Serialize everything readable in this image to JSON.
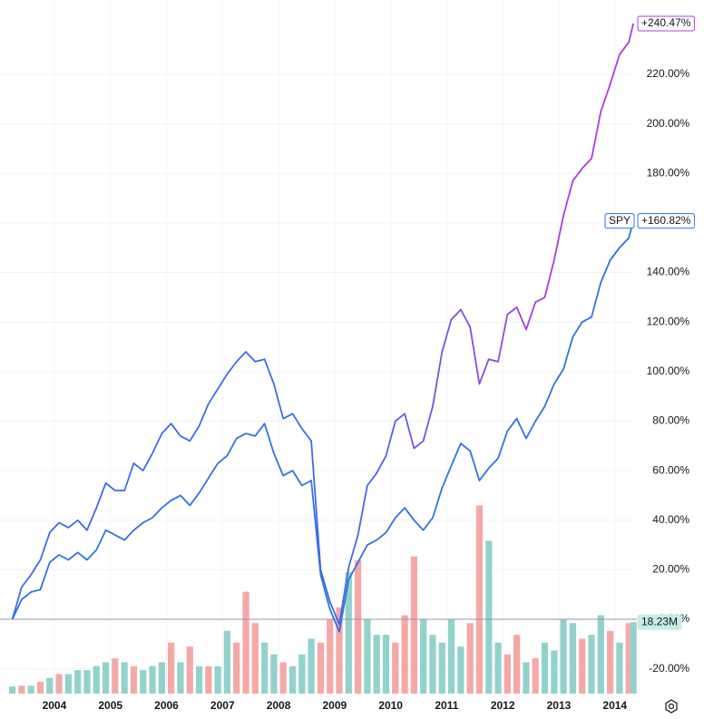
{
  "chart_data": {
    "type": "line",
    "x": [
      2003.25,
      2003.417,
      2003.583,
      2003.75,
      2003.917,
      2004.083,
      2004.25,
      2004.417,
      2004.583,
      2004.75,
      2004.917,
      2005.083,
      2005.25,
      2005.417,
      2005.583,
      2005.75,
      2005.917,
      2006.083,
      2006.25,
      2006.417,
      2006.583,
      2006.75,
      2006.917,
      2007.083,
      2007.25,
      2007.417,
      2007.583,
      2007.75,
      2007.917,
      2008.083,
      2008.25,
      2008.417,
      2008.583,
      2008.75,
      2008.917,
      2009.083,
      2009.25,
      2009.417,
      2009.583,
      2009.75,
      2009.917,
      2010.083,
      2010.25,
      2010.417,
      2010.583,
      2010.75,
      2010.917,
      2011.083,
      2011.25,
      2011.417,
      2011.583,
      2011.75,
      2011.917,
      2012.083,
      2012.25,
      2012.417,
      2012.583,
      2012.75,
      2012.917,
      2013.083,
      2013.25,
      2013.417,
      2013.583,
      2013.75,
      2013.917,
      2014.083,
      2014.25,
      2014.33
    ],
    "series": [
      {
        "gradient": [
          "#3f6ae8",
          "#a83ee0"
        ],
        "end_label": "+240.47%",
        "values": [
          0,
          13,
          18,
          24,
          35,
          39,
          37,
          40,
          36,
          45,
          55,
          52,
          52,
          63,
          60,
          67,
          75,
          79,
          74,
          72,
          78,
          87,
          93,
          99,
          104,
          108,
          104,
          105,
          95,
          81,
          83,
          77,
          72,
          20,
          7,
          -2,
          21,
          34,
          54,
          59,
          66,
          80,
          83,
          69,
          72,
          86,
          108,
          121,
          125,
          118,
          95,
          105,
          104,
          123,
          126,
          117,
          128,
          130,
          145,
          163,
          177,
          182,
          186,
          205,
          216,
          228,
          233,
          240.47
        ]
      },
      {
        "name": "SPY",
        "color": "#2f74e0",
        "end_label": "+160.82%",
        "values": [
          0,
          8,
          11,
          12,
          23,
          26,
          24,
          27,
          24,
          28,
          36,
          34,
          32,
          36,
          39,
          41,
          45,
          48,
          50,
          46,
          51,
          57,
          63,
          66,
          73,
          75,
          74,
          79,
          67,
          58,
          60,
          54,
          56,
          18,
          4,
          -5,
          16,
          23,
          30,
          32,
          35,
          41,
          45,
          40,
          36,
          41,
          53,
          62,
          71,
          68,
          56,
          61,
          65,
          76,
          81,
          73,
          80,
          86,
          95,
          101,
          114,
          120,
          122,
          136,
          145,
          150,
          154,
          160.82
        ]
      }
    ],
    "volume": {
      "end_label": "18.23M",
      "up_color": "#92d2cc",
      "down_color": "#f5a8a6",
      "label_bg": "#c8ebe7",
      "label_color": "#22998c",
      "values": [
        1.8,
        2,
        2,
        3,
        4,
        5,
        5,
        6,
        6,
        7,
        8,
        9,
        8,
        7,
        6,
        7,
        8,
        13,
        8,
        12,
        7,
        7,
        7,
        16,
        13,
        26,
        18,
        13,
        10,
        8,
        7,
        10,
        14,
        13,
        19,
        22,
        31,
        34,
        19,
        15,
        15,
        13,
        20,
        35,
        19,
        15,
        13,
        19,
        12,
        18,
        48,
        39,
        13,
        10,
        15,
        8,
        9,
        13,
        11,
        19,
        18,
        14,
        15,
        20,
        16,
        13,
        18,
        18.23
      ],
      "down": [
        false,
        true,
        false,
        true,
        false,
        true,
        false,
        false,
        false,
        false,
        false,
        true,
        false,
        true,
        false,
        false,
        false,
        true,
        false,
        true,
        false,
        true,
        false,
        false,
        true,
        true,
        true,
        false,
        false,
        true,
        false,
        false,
        false,
        true,
        true,
        true,
        false,
        true,
        false,
        false,
        false,
        true,
        true,
        true,
        false,
        false,
        false,
        false,
        false,
        true,
        true,
        false,
        false,
        true,
        true,
        false,
        true,
        false,
        false,
        false,
        false,
        true,
        false,
        false,
        true,
        false,
        true,
        false
      ],
      "ylim": [
        0,
        177
      ]
    },
    "xlim": [
      2003.03,
      2014.36
    ],
    "xticks": [
      2004,
      2005,
      2006,
      2007,
      2008,
      2009,
      2010,
      2011,
      2012,
      2013,
      2014
    ],
    "ylim": [
      -30,
      250
    ],
    "yticks": [
      {
        "value": -20,
        "label": "-20.00%"
      },
      {
        "value": 0,
        "label": "0.00%"
      },
      {
        "value": 20,
        "label": "20.00%"
      },
      {
        "value": 40,
        "label": "40.00%"
      },
      {
        "value": 60,
        "label": "60.00%"
      },
      {
        "value": 80,
        "label": "80.00%"
      },
      {
        "value": 100,
        "label": "100.00%"
      },
      {
        "value": 120,
        "label": "120.00%"
      },
      {
        "value": 140,
        "label": "140.00%"
      },
      {
        "value": 160,
        "label": "160.00%"
      },
      {
        "value": 180,
        "label": "180.00%"
      },
      {
        "value": 200,
        "label": "200.00%"
      },
      {
        "value": 220,
        "label": "220.00%"
      }
    ],
    "grid": true
  }
}
